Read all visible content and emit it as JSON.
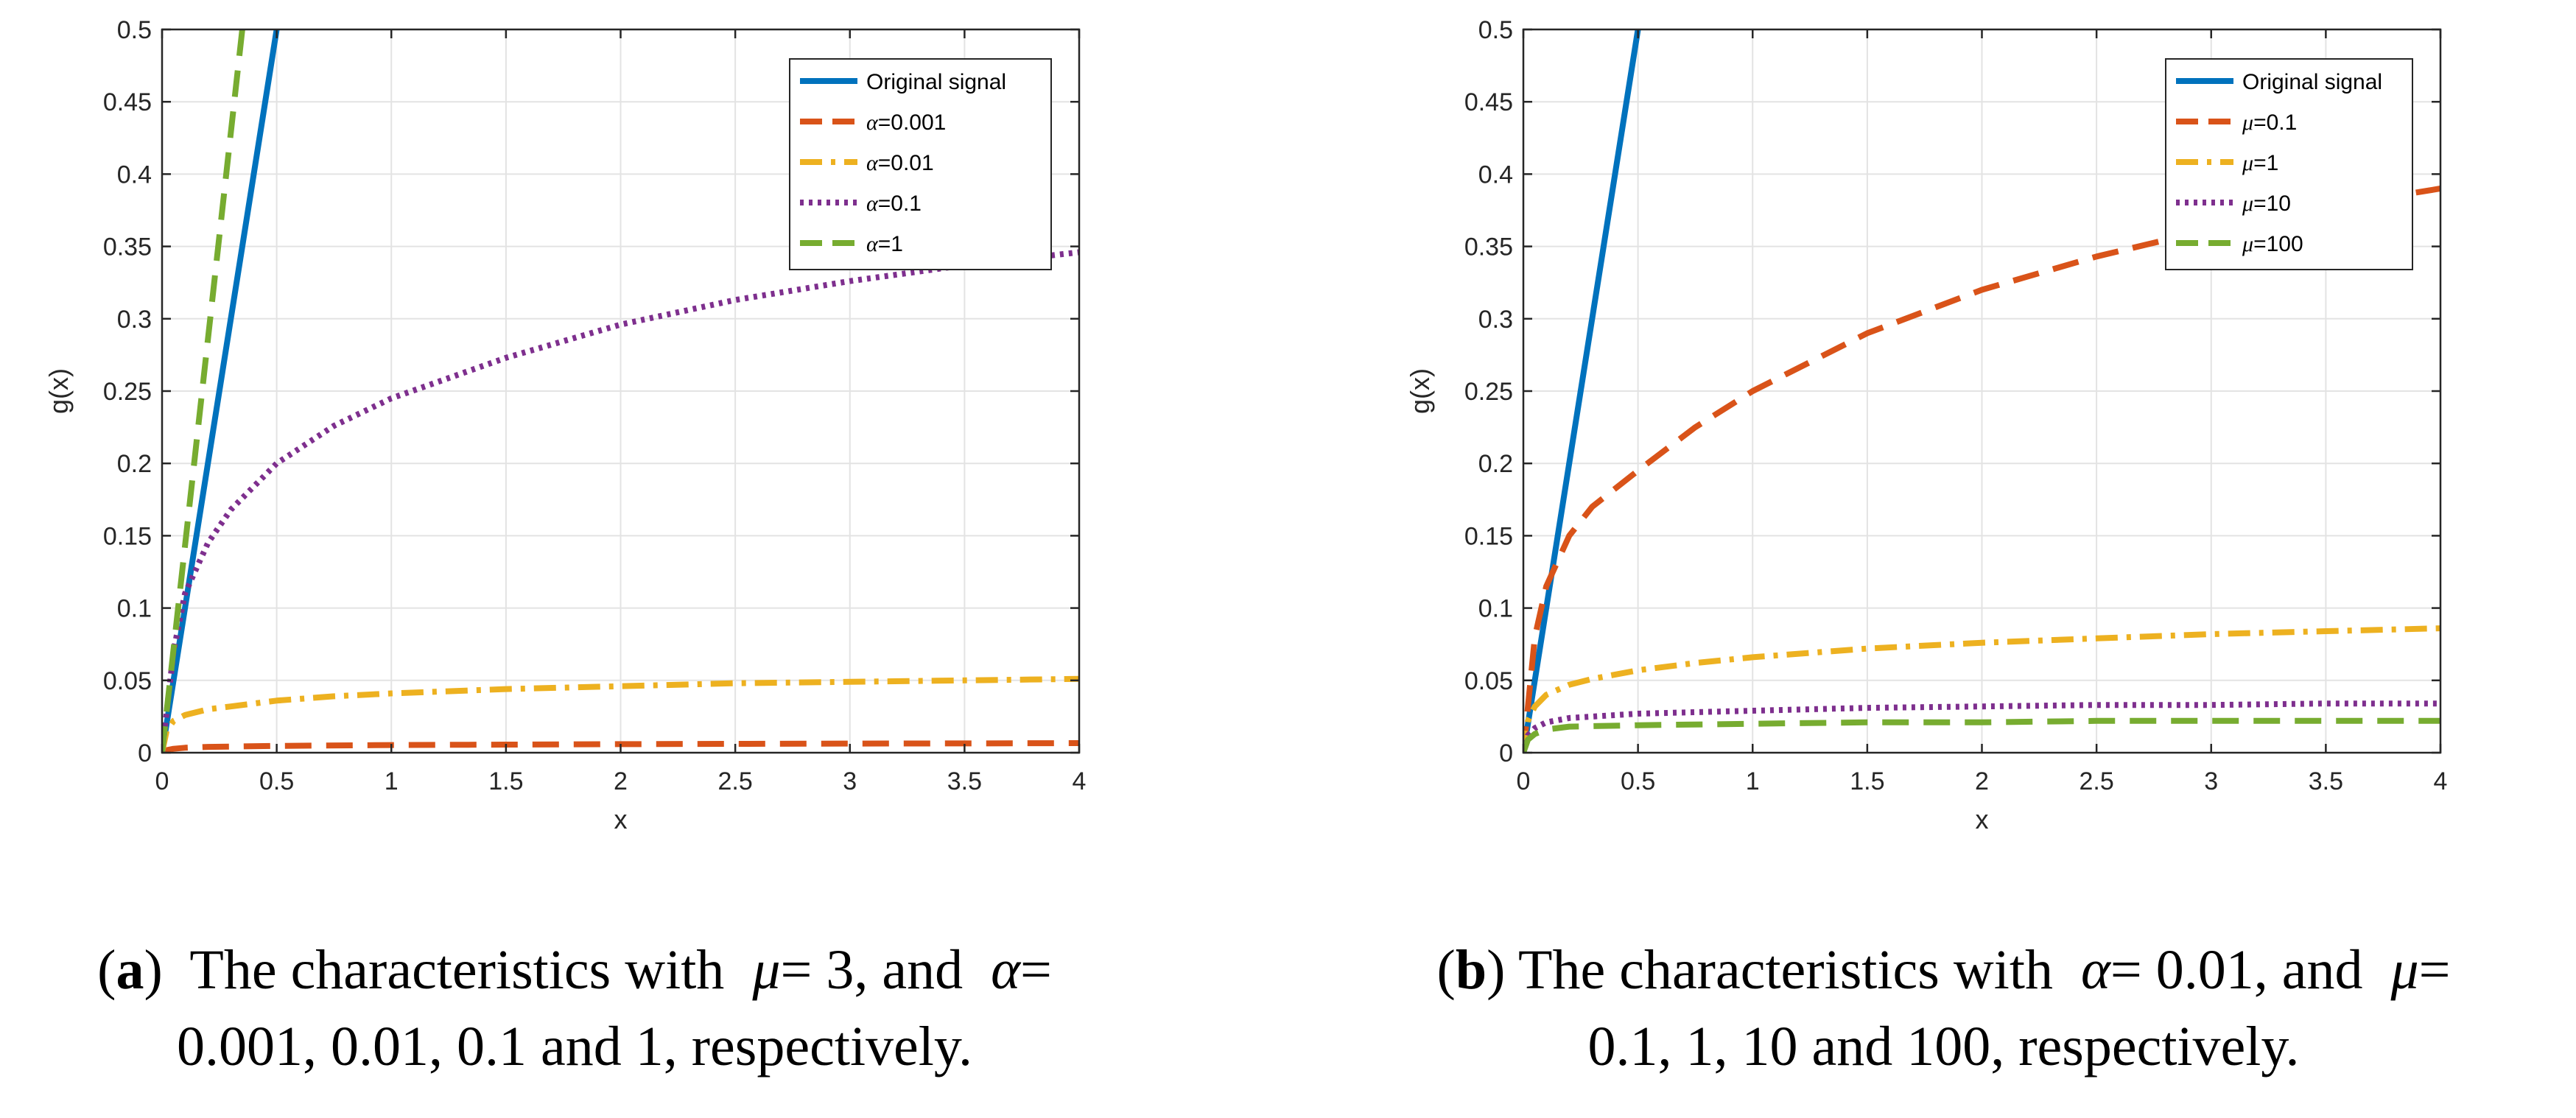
{
  "chart_data": [
    {
      "type": "line",
      "panel": "a",
      "xlabel": "x",
      "ylabel": "g(x)",
      "xlim": [
        0,
        4
      ],
      "ylim": [
        0,
        0.5
      ],
      "xticks": [
        0,
        0.5,
        1,
        1.5,
        2,
        2.5,
        3,
        3.5,
        4
      ],
      "xtick_labels": [
        "0",
        "0.5",
        "1",
        "1.5",
        "2",
        "2.5",
        "3",
        "3.5",
        "4"
      ],
      "yticks": [
        0,
        0.05,
        0.1,
        0.15,
        0.2,
        0.25,
        0.3,
        0.35,
        0.4,
        0.45,
        0.5
      ],
      "ytick_labels": [
        "0",
        "0.05",
        "0.1",
        "0.15",
        "0.2",
        "0.25",
        "0.3",
        "0.35",
        "0.4",
        "0.45",
        "0.5"
      ],
      "grid": true,
      "legend_position": "top-right",
      "series": [
        {
          "name": "Original signal",
          "legend_symbol": "",
          "legend_text": "Original signal",
          "color": "#0072BD",
          "style": "solid",
          "x": [
            0,
            0.5
          ],
          "y": [
            0,
            0.5
          ]
        },
        {
          "name": "α=0.001",
          "legend_symbol": "α",
          "legend_text": "=0.001",
          "color": "#D95319",
          "style": "dashed",
          "x": [
            0,
            0.02,
            0.05,
            0.1,
            0.2,
            0.5,
            1,
            1.5,
            2,
            2.5,
            3,
            3.5,
            4
          ],
          "y": [
            0,
            0.0018,
            0.0027,
            0.0034,
            0.004,
            0.0047,
            0.0053,
            0.0056,
            0.0059,
            0.0061,
            0.0063,
            0.0064,
            0.0066
          ]
        },
        {
          "name": "α=0.01",
          "legend_symbol": "α",
          "legend_text": "=0.01",
          "color": "#EDB120",
          "style": "dashdot",
          "x": [
            0,
            0.02,
            0.05,
            0.1,
            0.2,
            0.3,
            0.5,
            0.75,
            1,
            1.5,
            2,
            2.5,
            3,
            3.5,
            4
          ],
          "y": [
            0,
            0.015,
            0.022,
            0.026,
            0.03,
            0.032,
            0.036,
            0.039,
            0.041,
            0.044,
            0.046,
            0.048,
            0.049,
            0.05,
            0.051
          ]
        },
        {
          "name": "α=0.1",
          "legend_symbol": "α",
          "legend_text": "=0.1",
          "color": "#7E2F8E",
          "style": "dotted",
          "x": [
            0,
            0.05,
            0.1,
            0.2,
            0.3,
            0.5,
            0.75,
            1,
            1.5,
            2,
            2.5,
            3,
            3.5,
            4
          ],
          "y": [
            0,
            0.07,
            0.11,
            0.145,
            0.168,
            0.2,
            0.226,
            0.245,
            0.273,
            0.296,
            0.313,
            0.326,
            0.337,
            0.346
          ]
        },
        {
          "name": "α=1",
          "legend_symbol": "α",
          "legend_text": "=1",
          "color": "#77AC30",
          "style": "dashed",
          "x": [
            0,
            0.35
          ],
          "y": [
            0,
            0.5
          ]
        }
      ]
    },
    {
      "type": "line",
      "panel": "b",
      "xlabel": "x",
      "ylabel": "g(x)",
      "xlim": [
        0,
        4
      ],
      "ylim": [
        0,
        0.5
      ],
      "xticks": [
        0,
        0.5,
        1,
        1.5,
        2,
        2.5,
        3,
        3.5,
        4
      ],
      "xtick_labels": [
        "0",
        "0.5",
        "1",
        "1.5",
        "2",
        "2.5",
        "3",
        "3.5",
        "4"
      ],
      "yticks": [
        0,
        0.05,
        0.1,
        0.15,
        0.2,
        0.25,
        0.3,
        0.35,
        0.4,
        0.45,
        0.5
      ],
      "ytick_labels": [
        "0",
        "0.05",
        "0.1",
        "0.15",
        "0.2",
        "0.25",
        "0.3",
        "0.35",
        "0.4",
        "0.45",
        "0.5"
      ],
      "grid": true,
      "legend_position": "top-right",
      "series": [
        {
          "name": "Original signal",
          "legend_symbol": "",
          "legend_text": "Original signal",
          "color": "#0072BD",
          "style": "solid",
          "x": [
            0,
            0.5
          ],
          "y": [
            0,
            0.5
          ]
        },
        {
          "name": "μ=0.1",
          "legend_symbol": "μ",
          "legend_text": "=0.1",
          "color": "#D95319",
          "style": "dashed",
          "x": [
            0,
            0.05,
            0.1,
            0.2,
            0.3,
            0.5,
            0.75,
            1,
            1.5,
            2,
            2.5,
            3,
            3.5,
            4
          ],
          "y": [
            0,
            0.08,
            0.115,
            0.15,
            0.17,
            0.195,
            0.225,
            0.25,
            0.29,
            0.32,
            0.343,
            0.362,
            0.377,
            0.39
          ]
        },
        {
          "name": "μ=1",
          "legend_symbol": "μ",
          "legend_text": "=1",
          "color": "#EDB120",
          "style": "dashdot",
          "x": [
            0,
            0.02,
            0.05,
            0.1,
            0.2,
            0.3,
            0.5,
            0.75,
            1,
            1.5,
            2,
            2.5,
            3,
            3.5,
            4
          ],
          "y": [
            0,
            0.022,
            0.032,
            0.04,
            0.047,
            0.051,
            0.057,
            0.062,
            0.066,
            0.072,
            0.076,
            0.079,
            0.082,
            0.084,
            0.086
          ]
        },
        {
          "name": "μ=10",
          "legend_symbol": "μ",
          "legend_text": "=10",
          "color": "#7E2F8E",
          "style": "dotted",
          "x": [
            0,
            0.02,
            0.05,
            0.1,
            0.2,
            0.5,
            1,
            1.5,
            2,
            2.5,
            3,
            3.5,
            4
          ],
          "y": [
            0,
            0.012,
            0.017,
            0.021,
            0.024,
            0.027,
            0.029,
            0.031,
            0.032,
            0.033,
            0.033,
            0.034,
            0.034
          ]
        },
        {
          "name": "μ=100",
          "legend_symbol": "μ",
          "legend_text": "=100",
          "color": "#77AC30",
          "style": "dashed",
          "x": [
            0,
            0.02,
            0.05,
            0.1,
            0.2,
            0.5,
            1,
            1.5,
            2,
            2.5,
            3,
            3.5,
            4
          ],
          "y": [
            0,
            0.009,
            0.013,
            0.016,
            0.018,
            0.019,
            0.02,
            0.021,
            0.021,
            0.022,
            0.022,
            0.022,
            0.022
          ]
        }
      ]
    }
  ],
  "captions": {
    "a": {
      "tag_open": "(",
      "tag_letter": "a",
      "tag_close": ")",
      "text_1": "  The characteristics with  ",
      "mu": "μ",
      "text_2": "= 3, and  ",
      "alpha": "α",
      "text_3": "=",
      "line2": "0.001, 0.01, 0.1 and 1, respectively."
    },
    "b": {
      "tag_open": "(",
      "tag_letter": "b",
      "tag_close": ")",
      "text_1": " The characteristics with  ",
      "alpha": "α",
      "text_2": "= 0.01, and  ",
      "mu": "μ",
      "text_3": "=",
      "line2": "0.1, 1, 10 and 100, respectively."
    }
  }
}
